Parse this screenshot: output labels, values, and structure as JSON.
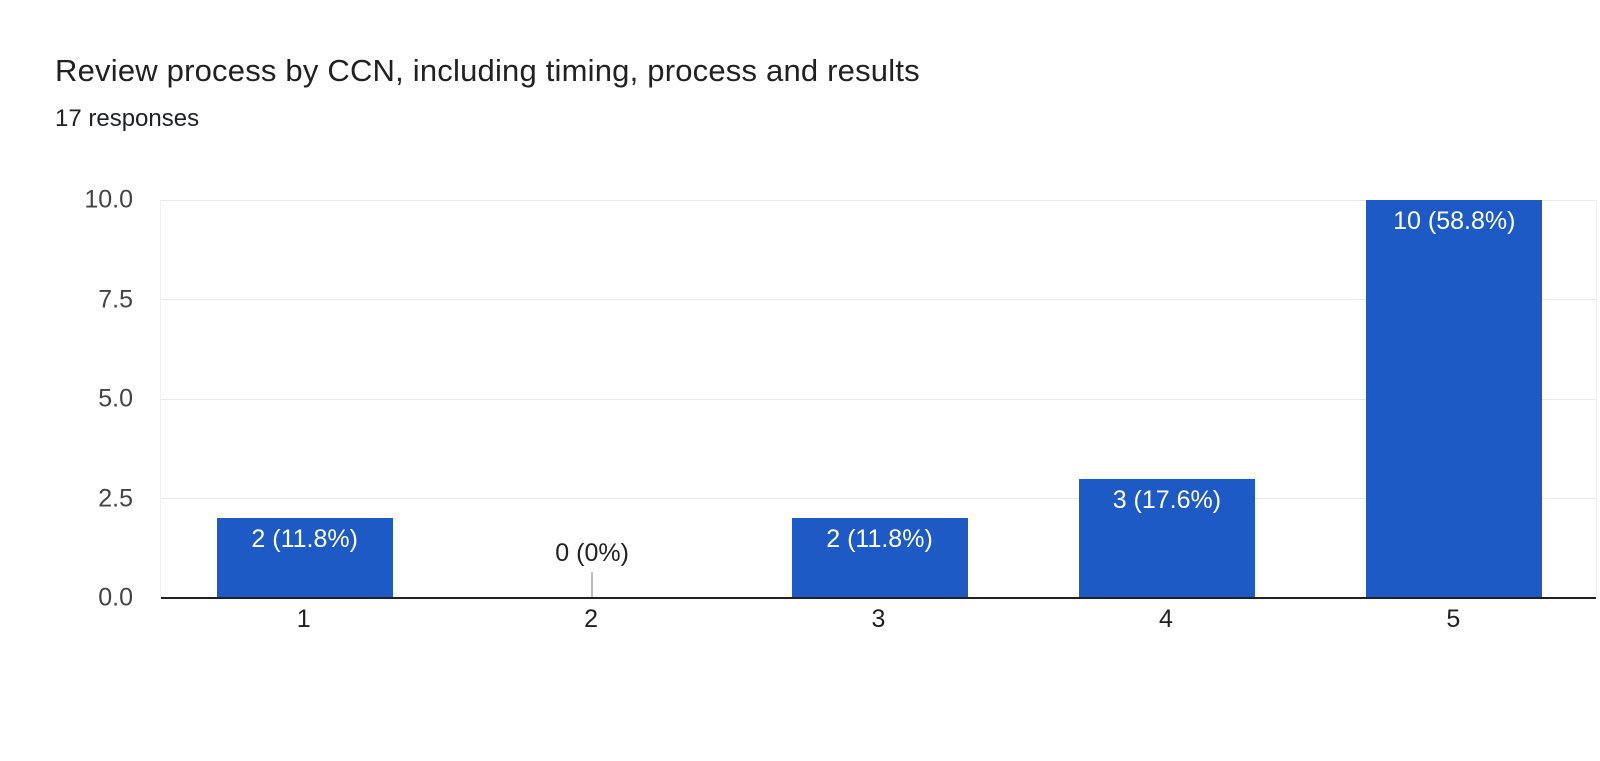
{
  "header": {
    "title": "Review process by CCN, including timing, process and results",
    "subtitle": "17 responses"
  },
  "chart_data": {
    "type": "bar",
    "title": "Review process by CCN, including timing, process and results",
    "subtitle": "17 responses",
    "categories": [
      "1",
      "2",
      "3",
      "4",
      "5"
    ],
    "values": [
      2,
      0,
      2,
      3,
      10
    ],
    "bar_labels": [
      "2 (11.8%)",
      "0 (0%)",
      "2 (11.8%)",
      "3 (17.6%)",
      "10 (58.8%)"
    ],
    "percentages": [
      11.8,
      0,
      11.8,
      17.6,
      58.8
    ],
    "total_responses": 17,
    "xlabel": "",
    "ylabel": "",
    "ylim": [
      0,
      10
    ],
    "yticks": [
      "0.0",
      "2.5",
      "5.0",
      "7.5",
      "10.0"
    ],
    "grid": true,
    "legend": false,
    "colors": {
      "bar": "#1e5ac6",
      "bar_label": "#ffffff",
      "zero_label": "#212121",
      "zero_stub": "#bdbdbd",
      "gridline": "#e8e8e8",
      "plot_border": "#f0f0f0",
      "axis_line": "#212121",
      "tick_label": "#444444",
      "category_label": "#212121",
      "title": "#212121",
      "subtitle": "#202124",
      "background": "#ffffff"
    }
  }
}
